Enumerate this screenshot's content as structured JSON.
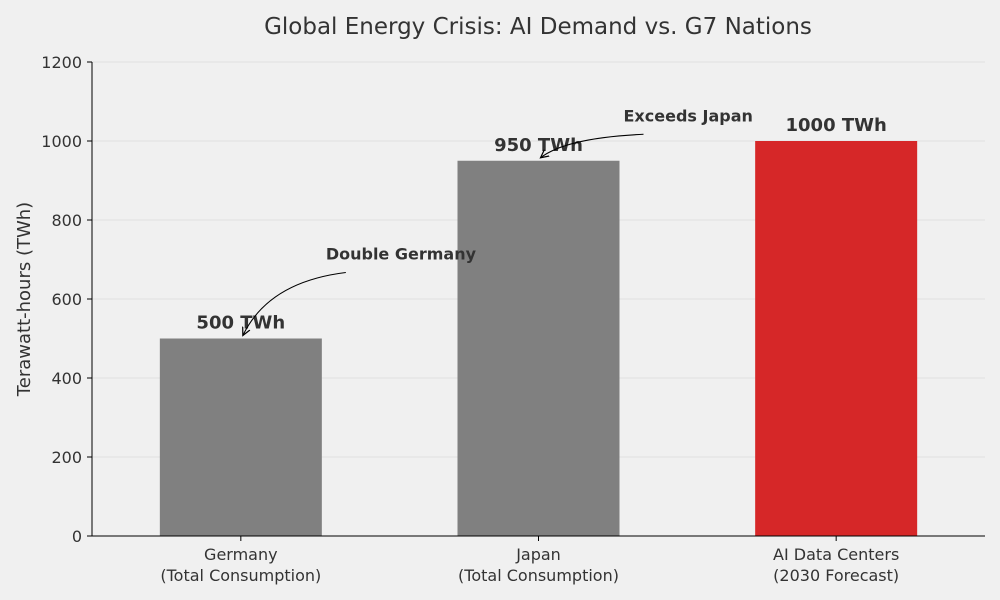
{
  "chart_data": {
    "type": "bar",
    "title": "Global Energy Crisis: AI Demand vs. G7 Nations",
    "xlabel": "",
    "ylabel": "Terawatt-hours (TWh)",
    "ylim": [
      0,
      1200
    ],
    "yticks": [
      0,
      200,
      400,
      600,
      800,
      1000,
      1200
    ],
    "grid": "horizontal",
    "categories": [
      {
        "line1": "Germany",
        "line2": "(Total Consumption)"
      },
      {
        "line1": "Japan",
        "line2": "(Total Consumption)"
      },
      {
        "line1": "AI Data Centers",
        "line2": "(2030 Forecast)"
      }
    ],
    "values": [
      500,
      950,
      1000
    ],
    "value_labels": [
      "500 TWh",
      "950 TWh",
      "1000 TWh"
    ],
    "colors": [
      "#808080",
      "#808080",
      "#d62728"
    ],
    "annotations": [
      {
        "text": "Double Germany",
        "target_category_index": 0,
        "target_value": 500,
        "text_value": 700
      },
      {
        "text": "Exceeds Japan",
        "target_category_index": 1,
        "target_value": 950,
        "text_value": 1050
      }
    ]
  }
}
